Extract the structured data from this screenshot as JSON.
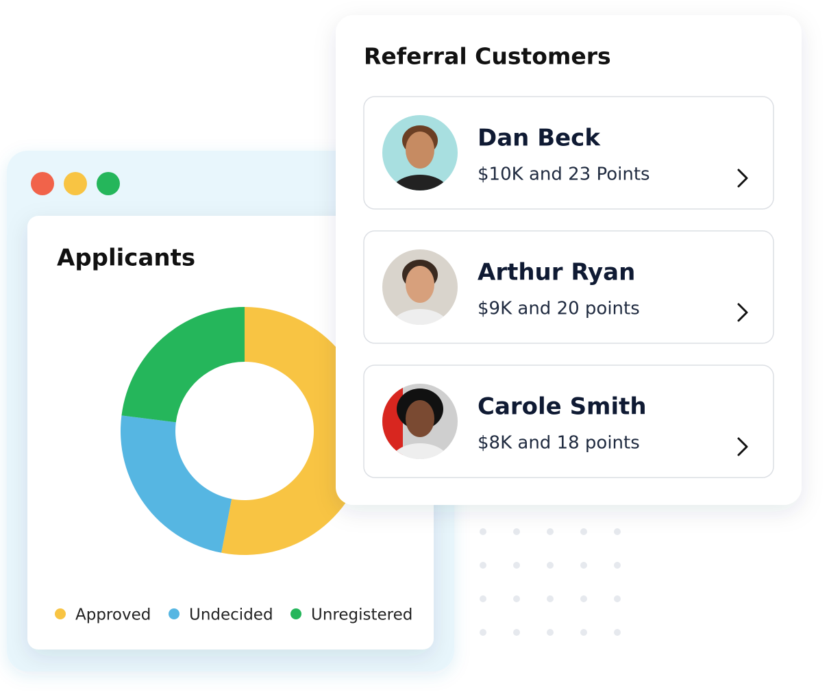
{
  "chart_data": {
    "type": "pie",
    "donut": true,
    "title": "Applicants",
    "categories": [
      "Approved",
      "Undecided",
      "Unregistered"
    ],
    "values": [
      53,
      24,
      23
    ],
    "colors": [
      "#f8c443",
      "#56b6e2",
      "#25b65b"
    ]
  },
  "referral": {
    "title": "Referral Customers",
    "customers": [
      {
        "name": "Dan Beck",
        "detail": "$10K and 23 Points"
      },
      {
        "name": "Arthur Ryan",
        "detail": "$9K and 20 points"
      },
      {
        "name": "Carole Smith",
        "detail": "$8K and 18 points"
      }
    ]
  }
}
